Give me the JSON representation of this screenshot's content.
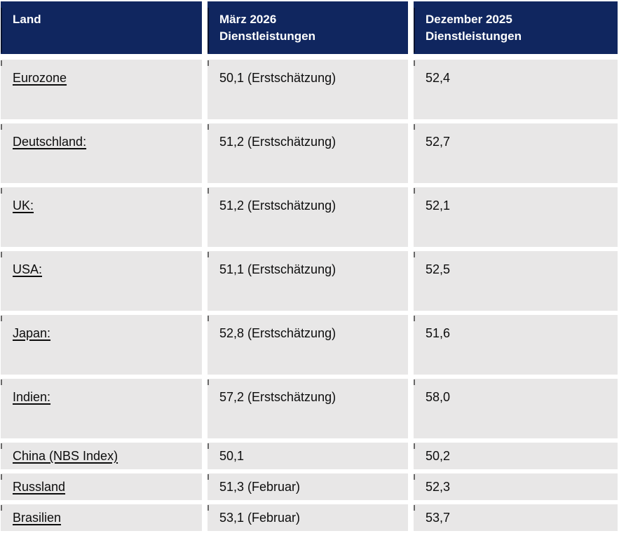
{
  "chart_data": {
    "type": "table",
    "title": "",
    "columns": [
      "Land",
      "März 2026\nDienstleistungen",
      "Dezember 2025\nDienstleistungen"
    ],
    "column_keys": [
      "land",
      "maerz-2026-dienstleistungen",
      "dezember-2025-dienstleistungen"
    ],
    "rows": [
      {
        "land": "Eurozone",
        "maerz_2026": "50,1 (Erstschätzung)",
        "dezember_2025": "52,4"
      },
      {
        "land": "Deutschland:",
        "maerz_2026": "51,2 (Erstschätzung)",
        "dezember_2025": "52,7"
      },
      {
        "land": "UK:",
        "maerz_2026": "51,2 (Erstschätzung)",
        "dezember_2025": "52,1"
      },
      {
        "land": "USA:",
        "maerz_2026": "51,1 (Erstschätzung)",
        "dezember_2025": "52,5"
      },
      {
        "land": "Japan:",
        "maerz_2026": "52,8 (Erstschätzung)",
        "dezember_2025": "51,6"
      },
      {
        "land": "Indien:",
        "maerz_2026": "57,2 (Erstschätzung)",
        "dezember_2025": "58,0"
      },
      {
        "land": "China (NBS Index)",
        "maerz_2026": "50,1",
        "dezember_2025": "50,2"
      },
      {
        "land": "Russland",
        "maerz_2026": "51,3 (Februar)",
        "dezember_2025": "52,3"
      },
      {
        "land": "Brasilien",
        "maerz_2026": "53,1 (Februar)",
        "dezember_2025": "53,7"
      }
    ]
  },
  "colors": {
    "header_bg": "#10265f",
    "header_text": "#ffffff",
    "cell_bg": "#e8e7e7",
    "body_text": "#0d0d0d"
  }
}
